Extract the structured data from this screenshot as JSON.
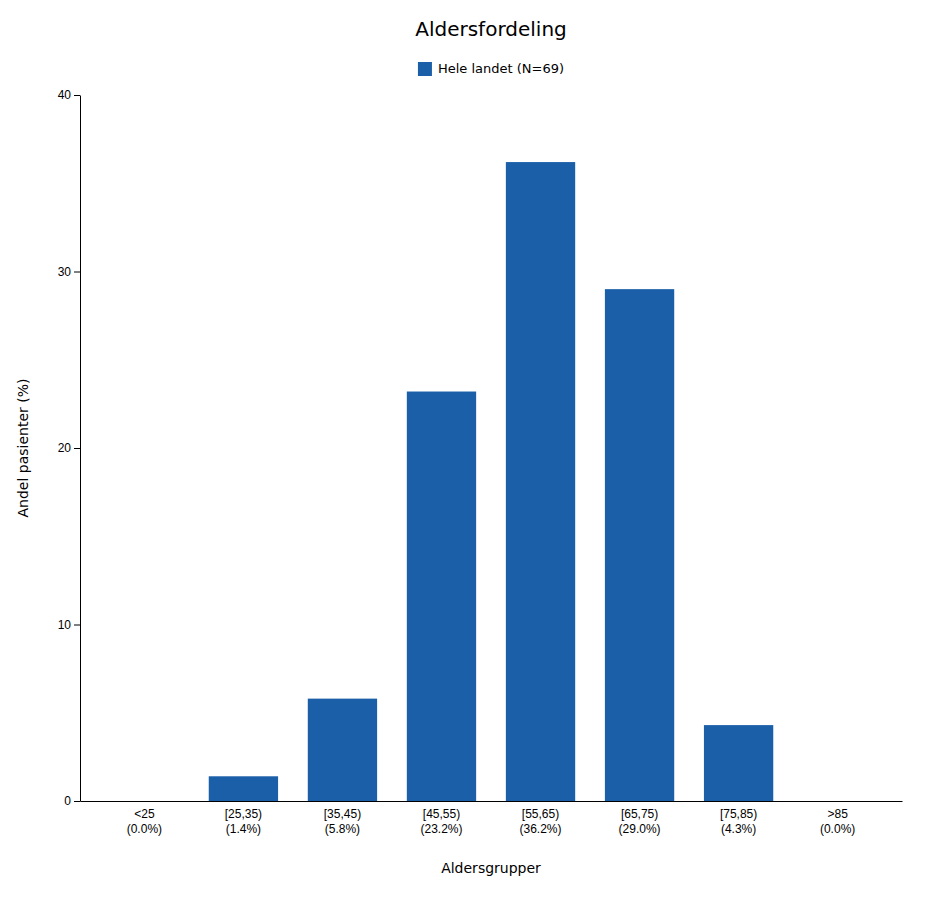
{
  "chart_data": {
    "type": "bar",
    "title": "Aldersfordeling",
    "xlabel": "Aldersgrupper",
    "ylabel": "Andel pasienter (%)",
    "categories": [
      "<25\n(0.0%)",
      "[25,35)\n(1.4%)",
      "[35,45)\n(5.8%)",
      "[45,55)\n(23.2%)",
      "[55,65)\n(36.2%)",
      "[65,75)\n(29.0%)",
      "[75,85)\n(4.3%)",
      ">85\n(0.0%)"
    ],
    "series": [
      {
        "name": "Hele landet (N=69)",
        "color": "#1a5fa8",
        "values": [
          0.0,
          1.4,
          5.8,
          23.2,
          36.2,
          29.0,
          4.3,
          0.0
        ]
      }
    ],
    "ylim": [
      0,
      40
    ],
    "yticks": [
      0,
      10,
      20,
      30,
      40
    ],
    "grid": false,
    "legend": "top"
  }
}
